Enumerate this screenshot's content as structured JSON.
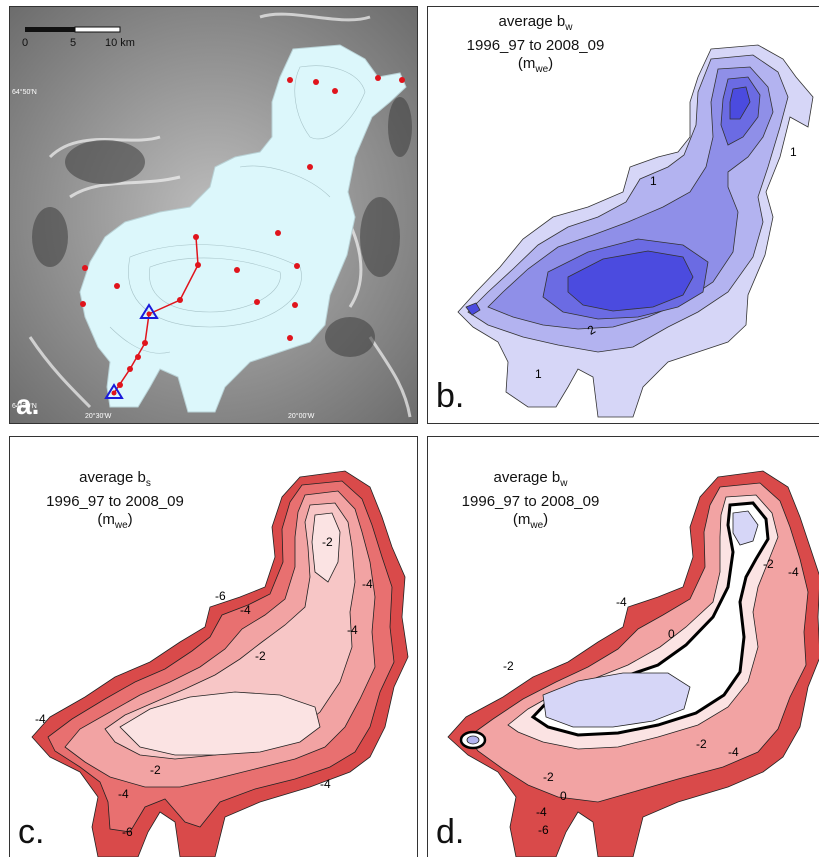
{
  "panel_a": {
    "letter": "a.",
    "scale_labels": [
      "0",
      "5",
      "10 km"
    ],
    "coords": [
      "64°50'N",
      "64°30'N",
      "20°30'W",
      "20°00'W"
    ]
  },
  "panel_b": {
    "letter": "b.",
    "title_main": "average b",
    "title_sub": "w",
    "period": "1996_97 to 2008_09",
    "unit_open": "(m",
    "unit_sub": "we",
    "unit_close": ")",
    "contour_labels": [
      "1",
      "1",
      "2",
      "1"
    ]
  },
  "panel_c": {
    "letter": "c.",
    "title_main": "average b",
    "title_sub": "s",
    "period": "1996_97 to 2008_09",
    "unit_open": "(m",
    "unit_sub": "we",
    "unit_close": ")",
    "contour_labels": [
      "-2",
      "-4",
      "-4",
      "-6",
      "-4",
      "-2",
      "-4",
      "-2",
      "-4",
      "-6",
      "-4"
    ]
  },
  "panel_d": {
    "letter": "d.",
    "title_main": "average b",
    "title_sub": "w",
    "period": "1996_97 to 2008_09",
    "unit_open": "(m",
    "unit_sub": "we",
    "unit_close": ")",
    "contour_labels": [
      "-2",
      "-4",
      "-4",
      "0",
      "-2",
      "0",
      "-2",
      "-4",
      "-2",
      "-4",
      "-6"
    ]
  },
  "colors": {
    "ice": "#dcf7fb",
    "stake": "#e0141c",
    "triangle": "#1a1adb",
    "blue_light": "#d6d6f7",
    "blue_mid": "#8f8fe8",
    "blue_dark": "#4b4bdf",
    "red_light": "#fbe3e3",
    "red_mid": "#f2a3a3",
    "red_dark": "#d94a4a"
  }
}
